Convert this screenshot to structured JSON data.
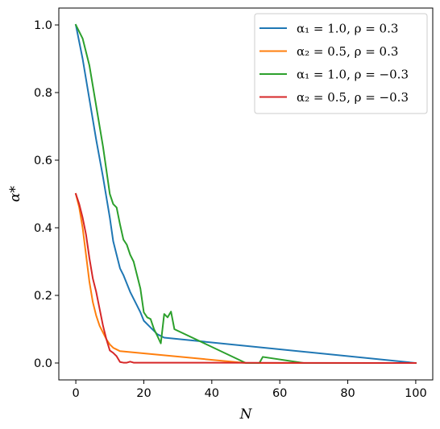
{
  "chart_data": {
    "type": "line",
    "xlabel": "N",
    "ylabel": "α*",
    "xlim": [
      -5,
      105
    ],
    "ylim": [
      -0.05,
      1.05
    ],
    "xticks": [
      0,
      20,
      40,
      60,
      80,
      100
    ],
    "xtick_labels": [
      "0",
      "20",
      "40",
      "60",
      "80",
      "100"
    ],
    "yticks": [
      0.0,
      0.2,
      0.4,
      0.6,
      0.8,
      1.0
    ],
    "ytick_labels": [
      "0.0",
      "0.2",
      "0.4",
      "0.6",
      "0.8",
      "1.0"
    ],
    "grid": false,
    "legend_position": "top-right",
    "series": [
      {
        "name": "α₁ = 1.0, ρ = 0.3",
        "color": "#1f77b4",
        "x": [
          0,
          2,
          4,
          6,
          8,
          10,
          11,
          12,
          13,
          14,
          15,
          16,
          17,
          18,
          19,
          20,
          22,
          24,
          26,
          100
        ],
        "y": [
          1.0,
          0.9,
          0.78,
          0.66,
          0.55,
          0.43,
          0.36,
          0.32,
          0.28,
          0.26,
          0.235,
          0.21,
          0.19,
          0.17,
          0.15,
          0.125,
          0.105,
          0.085,
          0.075,
          0.0
        ]
      },
      {
        "name": "α₂ = 0.5, ρ = 0.3",
        "color": "#ff7f0e",
        "x": [
          0,
          1,
          2,
          3,
          4,
          5,
          6,
          7,
          8,
          9,
          10,
          11,
          12,
          13,
          50,
          100
        ],
        "y": [
          0.5,
          0.46,
          0.4,
          0.32,
          0.24,
          0.18,
          0.14,
          0.11,
          0.09,
          0.07,
          0.055,
          0.045,
          0.04,
          0.035,
          0.0,
          0.0
        ]
      },
      {
        "name": "α₁ = 1.0, ρ = −0.3",
        "color": "#2ca02c",
        "x": [
          0,
          2,
          4,
          6,
          8,
          10,
          11,
          12,
          13,
          14,
          15,
          16,
          17,
          18,
          19,
          20,
          21,
          22,
          23,
          24,
          25,
          26,
          27,
          28,
          29,
          50,
          54,
          55,
          67,
          100
        ],
        "y": [
          1.0,
          0.96,
          0.88,
          0.76,
          0.64,
          0.5,
          0.47,
          0.46,
          0.41,
          0.365,
          0.35,
          0.32,
          0.3,
          0.26,
          0.22,
          0.15,
          0.135,
          0.13,
          0.1,
          0.08,
          0.058,
          0.145,
          0.135,
          0.152,
          0.1,
          0.0,
          0.0,
          0.018,
          0.0,
          0.0
        ]
      },
      {
        "name": "α₂ = 0.5, ρ = −0.3",
        "color": "#d62728",
        "x": [
          0,
          1,
          2,
          3,
          4,
          5,
          6,
          7,
          8,
          9,
          10,
          11,
          12,
          13,
          14,
          15,
          16,
          17,
          100
        ],
        "y": [
          0.5,
          0.47,
          0.43,
          0.38,
          0.31,
          0.25,
          0.21,
          0.16,
          0.11,
          0.07,
          0.037,
          0.03,
          0.02,
          0.003,
          0.001,
          0.001,
          0.004,
          0.001,
          0.0
        ]
      }
    ]
  }
}
